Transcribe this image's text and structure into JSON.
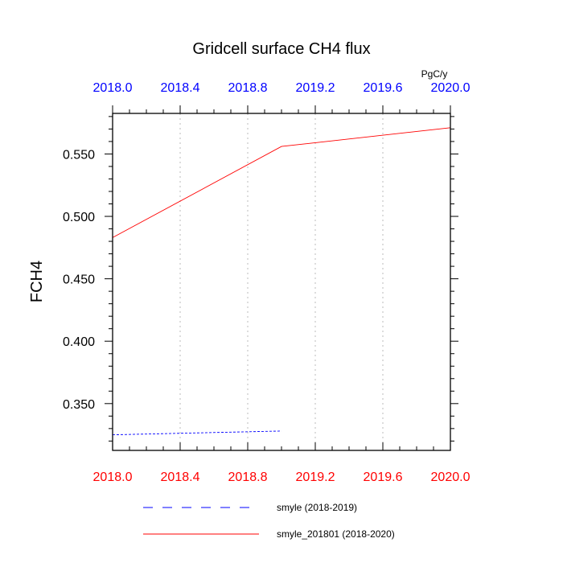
{
  "chart_data": {
    "type": "line",
    "title": "Gridcell surface CH4 flux",
    "units": "PgC/y",
    "ylabel": "FCH4",
    "xlabel": "",
    "xlim": [
      2018.0,
      2020.0
    ],
    "ylim": [
      0.3125,
      0.5825
    ],
    "x_ticks": [
      "2018.0",
      "2018.4",
      "2018.8",
      "2019.2",
      "2019.6",
      "2020.0"
    ],
    "x_tick_values": [
      2018.0,
      2018.4,
      2018.8,
      2019.2,
      2019.6,
      2020.0
    ],
    "y_ticks": [
      "0.350",
      "0.400",
      "0.450",
      "0.500",
      "0.550"
    ],
    "y_tick_values": [
      0.35,
      0.4,
      0.45,
      0.5,
      0.55
    ],
    "grid": "vertical dotted",
    "legend_placement": "bottom",
    "colors": {
      "top_axis_labels": "#0000ff",
      "bottom_axis_labels": "#ff0000",
      "grid": "#bbbbbb"
    },
    "series": [
      {
        "name": "smyle (2018-2019)",
        "color": "#0000ff",
        "dash": "dashed",
        "x": [
          2018.0,
          2019.0
        ],
        "values": [
          0.325,
          0.328
        ]
      },
      {
        "name": "smyle_201801 (2018-2020)",
        "color": "#ff0000",
        "dash": "solid",
        "x": [
          2018.0,
          2019.0,
          2020.0
        ],
        "values": [
          0.483,
          0.556,
          0.571
        ]
      }
    ]
  }
}
